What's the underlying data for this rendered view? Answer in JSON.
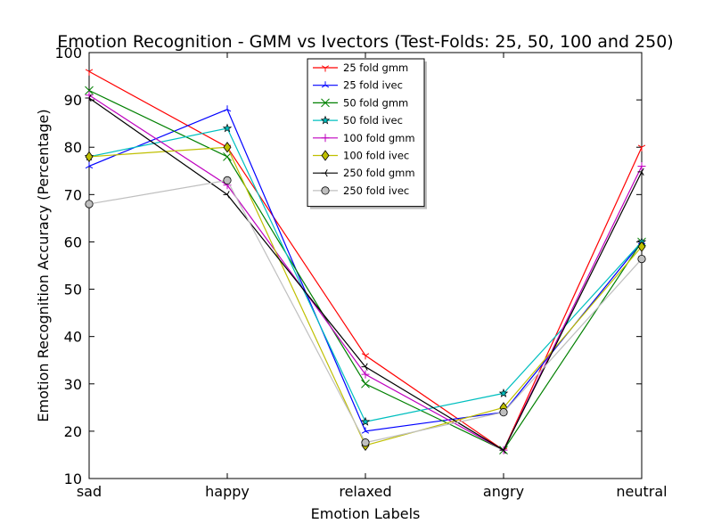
{
  "chart_data": {
    "type": "line",
    "title": "Emotion Recognition - GMM vs Ivectors (Test-Folds: 25, 50, 100 and 250)",
    "xlabel": "Emotion Labels",
    "ylabel": "Emotion Recognition Accuracy (Percentage)",
    "categories": [
      "sad",
      "happy",
      "relaxed",
      "angry",
      "neutral"
    ],
    "ylim": [
      10,
      100
    ],
    "yticks": [
      10,
      20,
      30,
      40,
      50,
      60,
      70,
      80,
      90,
      100
    ],
    "grid": false,
    "legend_position": "top-center",
    "series": [
      {
        "name": "25 fold gmm",
        "color": "#ff0000",
        "marker": "tri_down",
        "values": [
          96,
          80,
          36,
          16,
          80
        ]
      },
      {
        "name": "25 fold ivec",
        "color": "#0000ff",
        "marker": "tri_up",
        "values": [
          76,
          88,
          20,
          24,
          60
        ]
      },
      {
        "name": "50 fold gmm",
        "color": "#008000",
        "marker": "x",
        "values": [
          92,
          78,
          30,
          16,
          60
        ]
      },
      {
        "name": "50 fold ivec",
        "color": "#00bfbf",
        "marker": "star",
        "values": [
          78,
          84,
          22,
          28,
          60
        ]
      },
      {
        "name": "100 fold gmm",
        "color": "#bf00bf",
        "marker": "plus",
        "values": [
          91,
          72,
          32,
          16,
          76
        ]
      },
      {
        "name": "100 fold ivec",
        "color": "#bfbf00",
        "marker": "diamond",
        "values": [
          78,
          80,
          17,
          25,
          59
        ]
      },
      {
        "name": "250 fold gmm",
        "color": "#000000",
        "marker": "tri_left",
        "values": [
          90.4,
          70,
          33.6,
          16,
          74.8
        ]
      },
      {
        "name": "250 fold ivec",
        "color": "#bfbfbf",
        "marker": "circle",
        "values": [
          68,
          73,
          17.6,
          24,
          56.4
        ]
      }
    ]
  }
}
